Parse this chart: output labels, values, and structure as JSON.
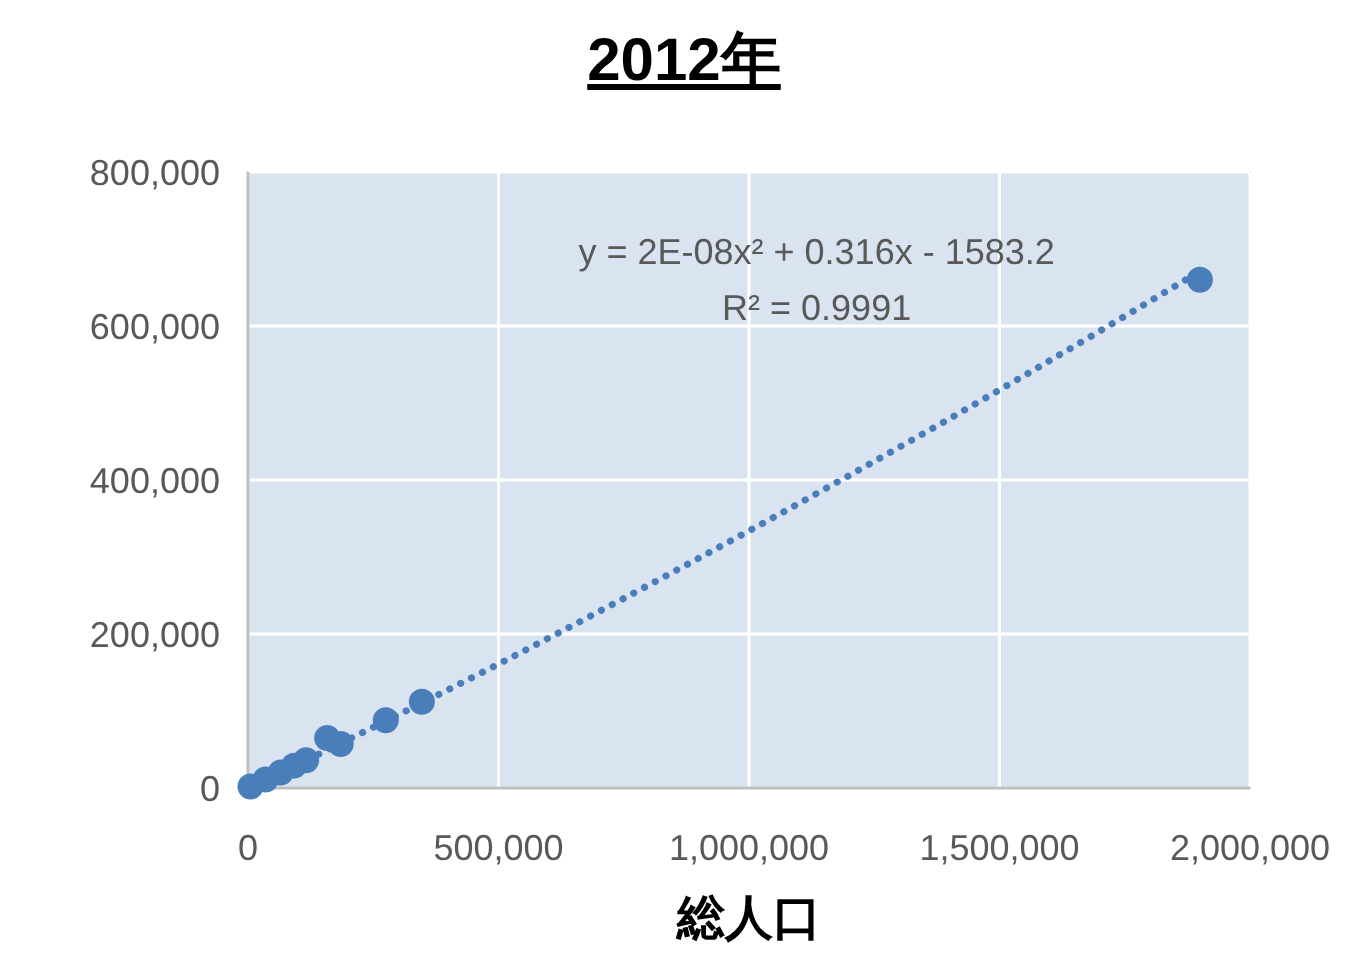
{
  "chart_data": {
    "type": "scatter",
    "title": "2012年",
    "xlabel": "総人口",
    "annotations": [
      "y = 2E-08x² + 0.316x - 1583.2",
      "R² = 0.9991"
    ],
    "xlim": [
      0,
      2000000
    ],
    "xticks": [
      {
        "value": 0,
        "label": "0"
      },
      {
        "value": 500000,
        "label": "500,000"
      },
      {
        "value": 1000000,
        "label": "1,000,000"
      },
      {
        "value": 1500000,
        "label": "1,500,000"
      },
      {
        "value": 2000000,
        "label": "2,000,000"
      }
    ],
    "ylim": [
      0,
      800000
    ],
    "yticks": [
      {
        "value": 0,
        "label": "0"
      },
      {
        "value": 200000,
        "label": "200,000"
      },
      {
        "value": 400000,
        "label": "400,000"
      },
      {
        "value": 600000,
        "label": "600,000"
      },
      {
        "value": 800000,
        "label": "800,000"
      }
    ],
    "grid": true,
    "marker": "circle",
    "series": [
      {
        "color": "#4a7ebb",
        "x": [
          5000,
          35000,
          65000,
          92000,
          116000,
          158000,
          185000,
          275000,
          347000,
          1900000
        ],
        "values": [
          2000,
          11000,
          20000,
          29000,
          36000,
          65000,
          57000,
          88000,
          112000,
          660000
        ]
      },
      {
        "type": "line",
        "line_style": "dotted",
        "marker": "none",
        "color": "#4a7ebb",
        "x": [
          10000,
          500000,
          1000000,
          1500000,
          1900000
        ],
        "values": [
          2000,
          161000,
          334000,
          517000,
          671000
        ]
      }
    ]
  }
}
